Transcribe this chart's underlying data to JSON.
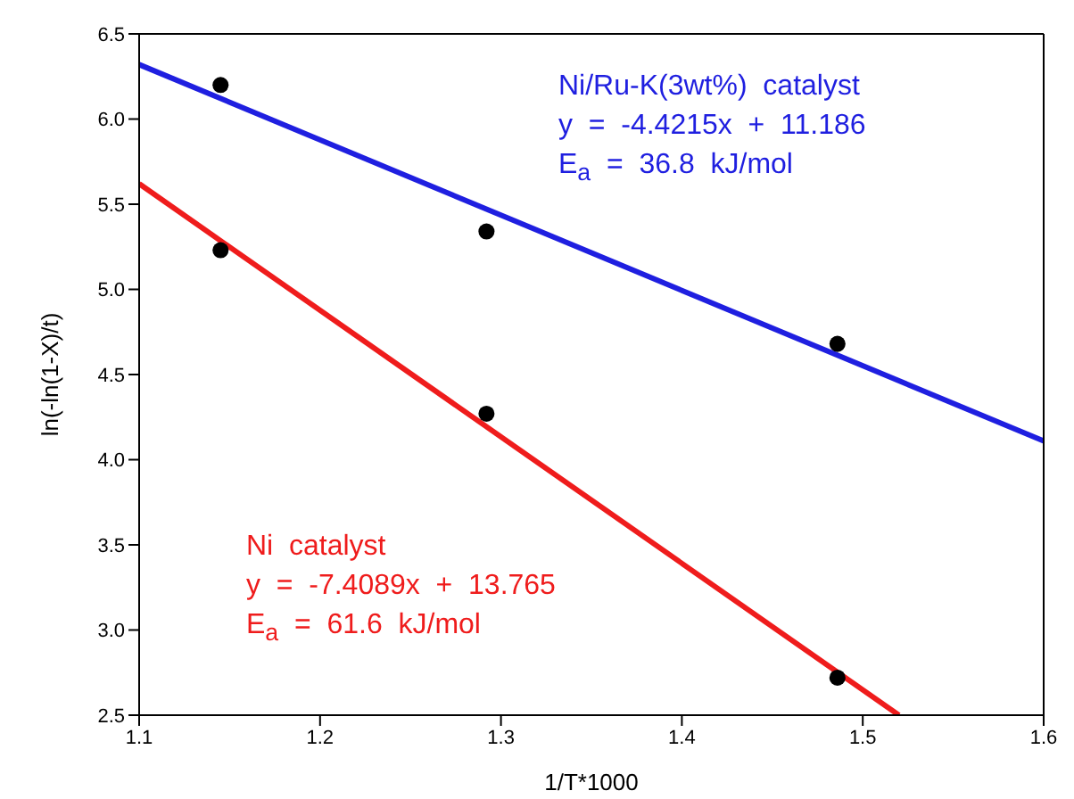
{
  "chart_data": {
    "type": "scatter",
    "xlabel": "1/T*1000",
    "ylabel": "ln(-ln(1-X)/t)",
    "xlim": [
      1.1,
      1.6
    ],
    "xticks": [
      1.1,
      1.2,
      1.3,
      1.4,
      1.5,
      1.6
    ],
    "ylim": [
      2.5,
      6.5
    ],
    "yticks": [
      2.5,
      {
        "value": 3,
        "label": "3.0"
      },
      3.5,
      {
        "value": 4,
        "label": "4.0"
      },
      4.5,
      {
        "value": 5,
        "label": "5.0"
      },
      5.5,
      {
        "value": 6,
        "label": "6.0"
      },
      6.5
    ],
    "grid": false,
    "legend": false,
    "series": [
      {
        "marker": "circle",
        "color": "#000000",
        "x": [
          1.145,
          1.292,
          1.486,
          1.145,
          1.292,
          1.486
        ],
        "values": [
          6.2,
          5.34,
          4.68,
          5.23,
          4.27,
          2.72
        ]
      },
      {
        "type": "line",
        "name": "Ni/Ru-K(3wt%)  catalyst",
        "color": "#1f1fe0",
        "marker": "none",
        "x": [
          1.1,
          1.6
        ],
        "values": [
          6.32,
          4.11
        ]
      },
      {
        "type": "line",
        "name": "Ni  catalyst",
        "color": "#ef1c1c",
        "marker": "none",
        "x": [
          1.1,
          1.52
        ],
        "values": [
          5.62,
          2.5
        ]
      }
    ],
    "annotations": [
      "y  =  -4.4215x  +  11.186",
      "E$_{a}$  =  36.8  kJ/mol",
      "y  =  -7.4089x  +  13.765",
      "E$_{a}$  =  61.6  kJ/mol"
    ]
  }
}
